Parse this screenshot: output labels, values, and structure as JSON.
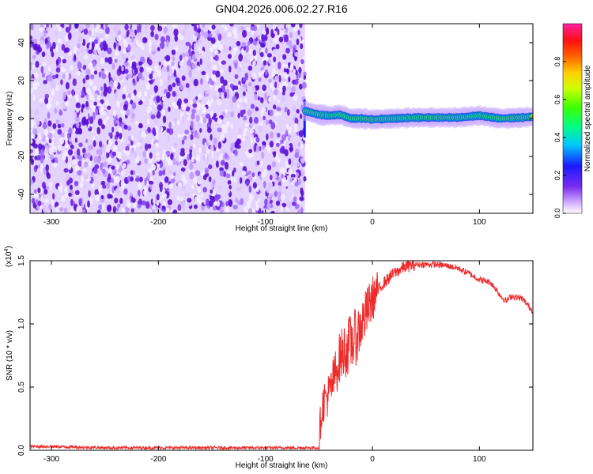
{
  "title": "GN04.2026.006.02.27.R16",
  "chart_data": [
    {
      "type": "heatmap",
      "name": "spectrogram",
      "xlabel": "Height of straight line (km)",
      "ylabel": "Frequency (Hz)",
      "xlim": [
        -320,
        150
      ],
      "ylim": [
        -50,
        50
      ],
      "x_ticks": [
        -300,
        -200,
        -100,
        0,
        100
      ],
      "x_tick_labels": [
        "-300",
        "-200",
        "-100",
        "0",
        "100"
      ],
      "y_ticks": [
        -40,
        -20,
        0,
        20,
        40
      ],
      "y_tick_labels": [
        "-40",
        "-20",
        "0",
        "20",
        "40"
      ],
      "noise_region_x": [
        -320,
        -63
      ],
      "signal_track": {
        "x": [
          -63,
          -50,
          -40,
          -30,
          -20,
          -10,
          0,
          20,
          40,
          60,
          80,
          100,
          120,
          140,
          150
        ],
        "freq": [
          4,
          2,
          1.5,
          2,
          0,
          0,
          -0.5,
          0,
          0.5,
          0.5,
          0.5,
          1.5,
          0,
          0.5,
          1
        ]
      },
      "colorbar": {
        "label": "Normalized spectral amplitude",
        "range": [
          0,
          1
        ],
        "ticks": [
          0.0,
          0.2,
          0.4,
          0.6,
          0.8
        ],
        "tick_labels": [
          "0.0",
          "0.2",
          "0.4",
          "0.6",
          "0.8"
        ]
      }
    },
    {
      "type": "line",
      "name": "snr",
      "xlabel": "Height of straight line (km)",
      "ylabel": "SNR (10 * v/v)",
      "scale_label": "(x10",
      "scale_exponent": "4",
      "scale_suffix": ")",
      "xlim": [
        -320,
        150
      ],
      "ylim": [
        0,
        1.5
      ],
      "x_ticks": [
        -300,
        -200,
        -100,
        0,
        100
      ],
      "x_tick_labels": [
        "-300",
        "-200",
        "-100",
        "0",
        "100"
      ],
      "y_ticks": [
        0.0,
        0.5,
        1.0,
        1.5
      ],
      "y_tick_labels": [
        "0.0",
        "0.5",
        "1.0",
        "1.5"
      ],
      "color": "#ee2a2a",
      "series": [
        {
          "name": "SNR",
          "x": [
            -320,
            -300,
            -250,
            -200,
            -150,
            -100,
            -60,
            -50,
            -48,
            -45,
            -40,
            -35,
            -30,
            -25,
            -20,
            -15,
            -10,
            -5,
            0,
            10,
            20,
            30,
            40,
            50,
            60,
            70,
            80,
            90,
            100,
            110,
            115,
            120,
            125,
            130,
            140,
            150
          ],
          "values": [
            0.03,
            0.03,
            0.02,
            0.02,
            0.02,
            0.02,
            0.02,
            0.02,
            0.3,
            0.4,
            0.45,
            0.6,
            0.75,
            0.8,
            0.85,
            0.9,
            1.0,
            1.1,
            1.2,
            1.32,
            1.4,
            1.45,
            1.47,
            1.47,
            1.47,
            1.46,
            1.44,
            1.4,
            1.35,
            1.33,
            1.28,
            1.22,
            1.18,
            1.22,
            1.2,
            1.1
          ]
        }
      ]
    }
  ]
}
